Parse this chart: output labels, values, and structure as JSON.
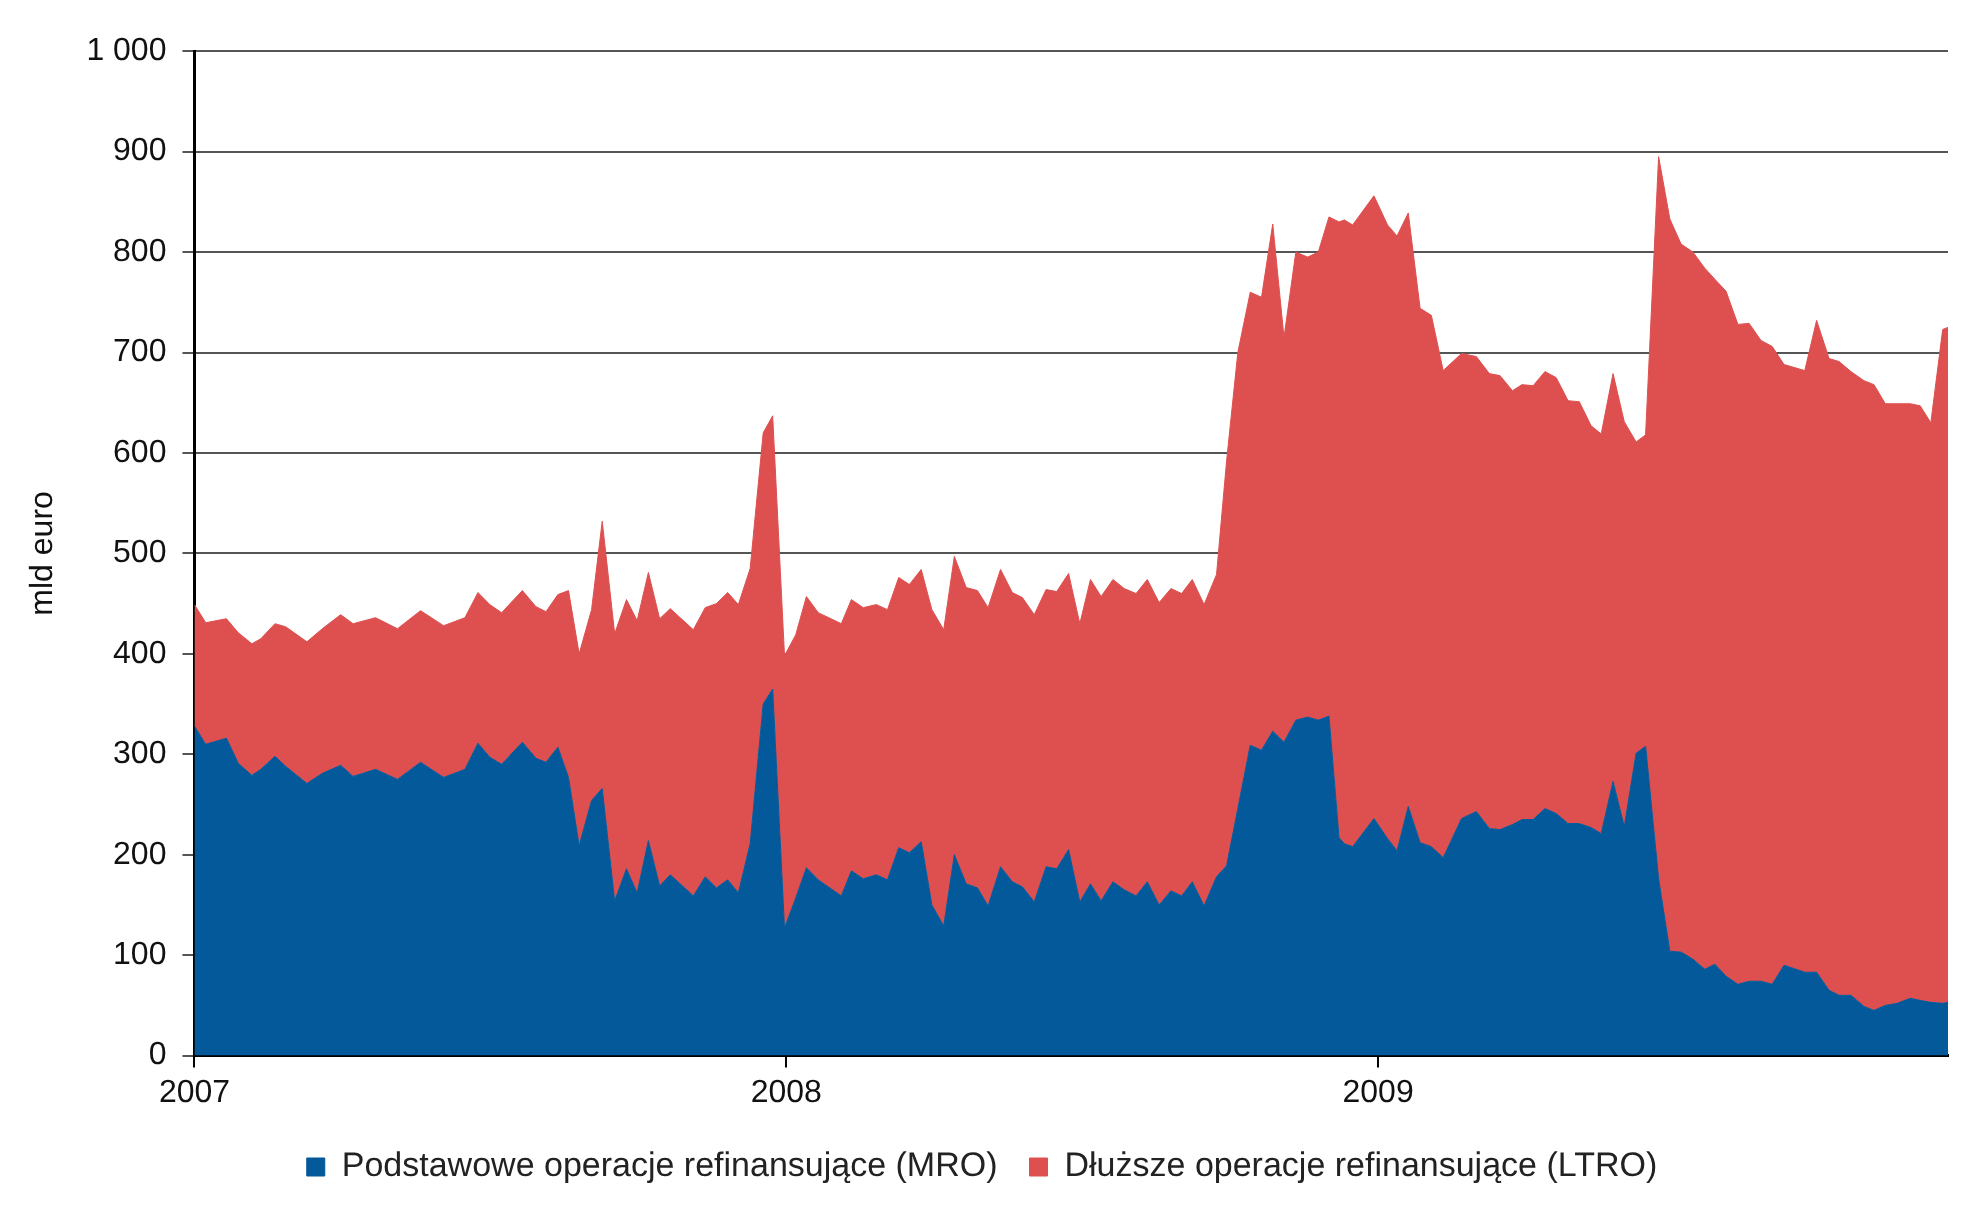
{
  "chart_data": {
    "type": "area",
    "stacked": true,
    "ylabel": "mld euro",
    "legend": "bottom",
    "grid": "y",
    "marker": "none",
    "x": [
      2007.0,
      2007.019,
      2007.054,
      2007.074,
      2007.097,
      2007.112,
      2007.136,
      2007.154,
      2007.19,
      2007.216,
      2007.247,
      2007.268,
      2007.306,
      2007.343,
      2007.382,
      2007.421,
      2007.457,
      2007.479,
      2007.499,
      2007.519,
      2007.554,
      2007.577,
      2007.594,
      2007.614,
      2007.632,
      2007.65,
      2007.671,
      2007.689,
      2007.71,
      2007.73,
      2007.748,
      2007.767,
      2007.786,
      2007.804,
      2007.843,
      2007.863,
      2007.882,
      2007.901,
      2007.919,
      2007.939,
      2007.961,
      2007.977,
      2007.997,
      2008.016,
      2008.034,
      2008.054,
      2008.093,
      2008.11,
      2008.13,
      2008.152,
      2008.171,
      2008.19,
      2008.208,
      2008.228,
      2008.246,
      2008.266,
      2008.284,
      2008.304,
      2008.323,
      2008.341,
      2008.362,
      2008.382,
      2008.399,
      2008.419,
      2008.439,
      2008.457,
      2008.477,
      2008.496,
      2008.514,
      2008.532,
      2008.552,
      2008.571,
      2008.591,
      2008.61,
      2008.63,
      2008.65,
      2008.668,
      2008.686,
      2008.706,
      2008.727,
      2008.744,
      2008.763,
      2008.784,
      2008.803,
      2008.822,
      2008.841,
      2008.861,
      2008.881,
      2008.899,
      2008.917,
      2008.934,
      2008.943,
      2008.957,
      2008.993,
      2009.016,
      2009.032,
      2009.051,
      2009.071,
      2009.09,
      2009.11,
      2009.141,
      2009.166,
      2009.188,
      2009.206,
      2009.227,
      2009.243,
      2009.262,
      2009.282,
      2009.301,
      2009.321,
      2009.34,
      2009.36,
      2009.377,
      2009.397,
      2009.416,
      2009.436,
      2009.452,
      2009.474,
      2009.493,
      2009.512,
      2009.532,
      2009.552,
      2009.569,
      2009.588,
      2009.608,
      2009.627,
      2009.647,
      2009.666,
      2009.686,
      2009.721,
      2009.741,
      2009.762,
      2009.779,
      2009.799,
      2009.821,
      2009.838,
      2009.857,
      2009.877,
      2009.899,
      2009.916,
      2009.934,
      2009.954,
      2009.963
    ],
    "series": [
      {
        "name": "Podstawowe operacje refinansujące (MRO)",
        "color": "#03599a",
        "values": [
          328,
          310,
          316,
          291,
          279,
          285,
          298,
          288,
          271,
          281,
          289,
          278,
          285,
          275,
          292,
          277,
          285,
          311,
          297,
          290,
          312,
          296,
          292,
          307,
          277,
          209,
          254,
          266,
          154,
          186,
          162,
          214,
          169,
          180,
          159,
          178,
          167,
          175,
          162,
          211,
          350,
          365,
          127,
          157,
          187,
          175,
          159,
          184,
          176,
          180,
          175,
          207,
          202,
          213,
          150,
          129,
          200,
          171,
          167,
          149,
          188,
          173,
          168,
          153,
          188,
          186,
          205,
          153,
          171,
          154,
          173,
          165,
          159,
          173,
          150,
          164,
          159,
          173,
          149,
          178,
          189,
          246,
          309,
          304,
          323,
          312,
          334,
          337,
          334,
          338,
          217,
          211,
          208,
          236,
          216,
          204,
          248,
          212,
          208,
          197,
          236,
          243,
          226,
          225,
          230,
          235,
          235,
          246,
          241,
          231,
          231,
          227,
          221,
          273,
          228,
          301,
          308,
          176,
          104,
          103,
          96,
          86,
          91,
          79,
          71,
          74,
          74,
          71,
          90,
          83,
          83,
          65,
          60,
          60,
          49,
          45,
          50,
          52,
          57,
          55,
          53,
          52,
          53
        ]
      },
      {
        "name": "Dłuższe operacje refinansujące (LTRO)",
        "color": "#de5050",
        "values": [
          121,
          121,
          119,
          130,
          131,
          130,
          132,
          139,
          141,
          144,
          150,
          152,
          151,
          150,
          151,
          151,
          151,
          150,
          152,
          151,
          151,
          151,
          150,
          152,
          186,
          191,
          190,
          266,
          266,
          268,
          271,
          267,
          266,
          265,
          265,
          268,
          283,
          286,
          287,
          274,
          270,
          272,
          271,
          262,
          270,
          266,
          271,
          270,
          270,
          269,
          269,
          269,
          267,
          271,
          294,
          295,
          297,
          295,
          296,
          297,
          296,
          288,
          288,
          286,
          276,
          276,
          275,
          277,
          303,
          303,
          301,
          300,
          301,
          301,
          301,
          301,
          301,
          301,
          300,
          301,
          403,
          454,
          451,
          451,
          505,
          403,
          466,
          458,
          466,
          497,
          613,
          621,
          619,
          620,
          611,
          612,
          591,
          532,
          529,
          485,
          463,
          453,
          453,
          452,
          432,
          433,
          432,
          435,
          434,
          421,
          420,
          400,
          398,
          406,
          403,
          310,
          310,
          719,
          729,
          705,
          704,
          698,
          682,
          682,
          657,
          655,
          638,
          635,
          598,
          599,
          649,
          629,
          631,
          621,
          623,
          623,
          599,
          597,
          592,
          592,
          577,
          671,
          672
        ]
      }
    ],
    "xlim": [
      2007,
      2009.963
    ],
    "xticks": [
      2007,
      2008,
      2009
    ],
    "ylim": [
      0,
      1000
    ],
    "yticks": [
      0,
      100,
      200,
      300,
      400,
      500,
      600,
      700,
      800,
      900,
      {
        "value": 1000,
        "label": "1 000"
      }
    ]
  }
}
